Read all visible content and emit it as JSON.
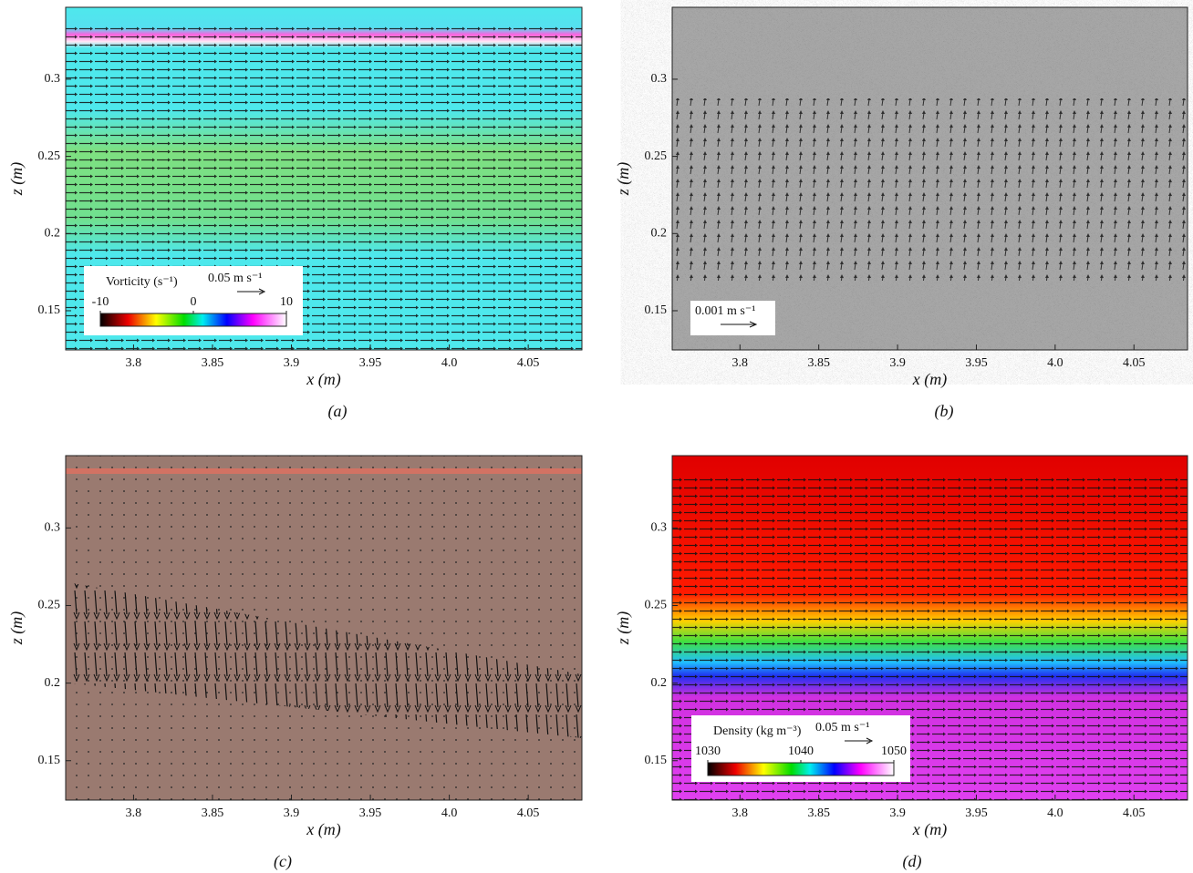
{
  "figure": {
    "panels": [
      {
        "label": "(a)",
        "xlabel": "x  (m)",
        "ylabel": "z  (m)",
        "xlim": [
          3.757,
          4.084
        ],
        "ylim": [
          0.1246,
          0.3466
        ],
        "xticks": [
          3.8,
          3.85,
          3.9,
          3.95,
          {
            "value": 4,
            "label": "4.0"
          },
          4.05
        ],
        "yticks": [
          0.15,
          0.2,
          0.25,
          0.3
        ],
        "legend": {
          "title": "Vorticity (s⁻¹)",
          "scale": "0.05 m s⁻¹",
          "colorbar_ticks": [
            -10,
            0,
            10
          ]
        }
      },
      {
        "label": "(b)",
        "xlabel": "x  (m)",
        "ylabel": "z  (m)",
        "xlim": [
          3.757,
          4.084
        ],
        "ylim": [
          0.1246,
          0.3466
        ],
        "xticks": [
          3.8,
          3.85,
          3.9,
          3.95,
          {
            "value": 4,
            "label": "4.0"
          },
          4.05
        ],
        "yticks": [
          0.15,
          0.2,
          0.25,
          0.3
        ],
        "legend": {
          "scale": "0.001 m s⁻¹"
        }
      },
      {
        "label": "(c)",
        "xlabel": "x  (m)",
        "ylabel": "z  (m)",
        "xlim": [
          3.757,
          4.084
        ],
        "ylim": [
          0.1246,
          0.3466
        ],
        "xticks": [
          3.8,
          3.85,
          3.9,
          3.95,
          {
            "value": 4,
            "label": "4.0"
          },
          4.05
        ],
        "yticks": [
          0.15,
          0.2,
          0.25,
          0.3
        ]
      },
      {
        "label": "(d)",
        "xlabel": "x  (m)",
        "ylabel": "z  (m)",
        "xlim": [
          3.757,
          4.084
        ],
        "ylim": [
          0.1246,
          0.3466
        ],
        "xticks": [
          3.8,
          3.85,
          3.9,
          3.95,
          {
            "value": 4,
            "label": "4.0"
          },
          4.05
        ],
        "yticks": [
          0.15,
          0.2,
          0.25,
          0.3
        ],
        "legend": {
          "title": "Density (kg m⁻³)",
          "scale": "0.05 m s⁻¹",
          "colorbar_ticks": [
            1030,
            1040,
            1050
          ]
        }
      }
    ]
  }
}
